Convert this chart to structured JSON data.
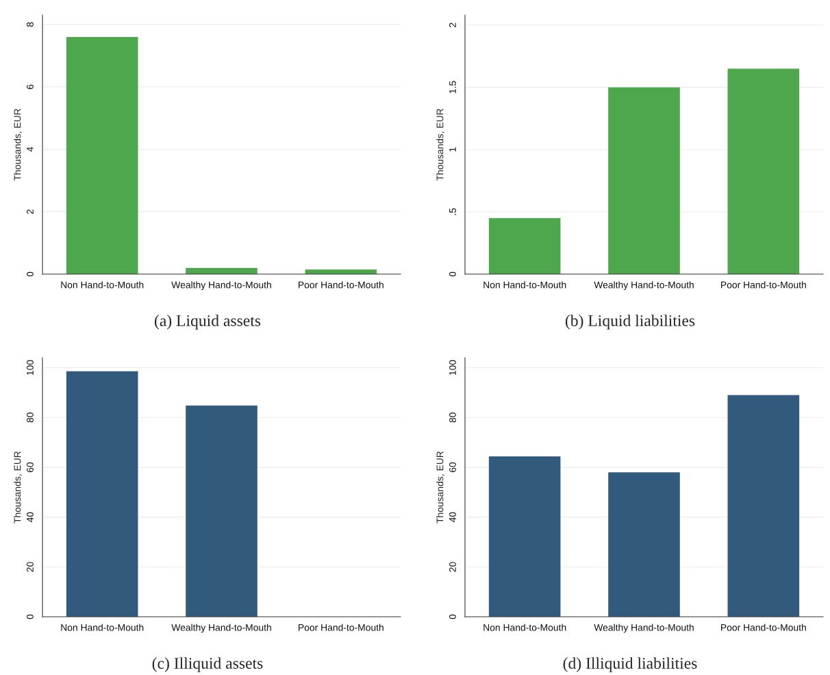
{
  "chart_data": [
    {
      "type": "bar",
      "title": "(a) Liquid assets",
      "ylabel": "Thousands, EUR",
      "categories": [
        "Non Hand-to-Mouth",
        "Wealthy Hand-to-Mouth",
        "Poor Hand-to-Mouth"
      ],
      "values": [
        7.6,
        0.2,
        0.15
      ],
      "color": "#4ea64d",
      "ylim": [
        0,
        8.3
      ],
      "yticks": [
        0,
        2,
        4,
        6,
        8
      ],
      "grid": "y"
    },
    {
      "type": "bar",
      "title": "(b) Liquid liabilities",
      "ylabel": "Thousands, EUR",
      "categories": [
        "Non Hand-to-Mouth",
        "Wealthy Hand-to-Mouth",
        "Poor Hand-to-Mouth"
      ],
      "values": [
        0.45,
        1.5,
        1.65
      ],
      "color": "#4ea64d",
      "ylim": [
        0,
        2.08
      ],
      "yticks": [
        0,
        {
          "value": 0.5,
          "label": ".5"
        },
        1,
        1.5,
        2
      ],
      "grid": "y"
    },
    {
      "type": "bar",
      "title": "(c) Illiquid assets",
      "ylabel": "Thousands, EUR",
      "categories": [
        "Non Hand-to-Mouth",
        "Wealthy Hand-to-Mouth",
        "Poor Hand-to-Mouth"
      ],
      "values": [
        98.6,
        84.8,
        0
      ],
      "color": "#325a7d",
      "ylim": [
        0,
        104
      ],
      "yticks": [
        0,
        20,
        40,
        60,
        80,
        100
      ],
      "grid": "y"
    },
    {
      "type": "bar",
      "title": "(d) Illiquid liabilities",
      "ylabel": "Thousands, EUR",
      "categories": [
        "Non Hand-to-Mouth",
        "Wealthy Hand-to-Mouth",
        "Poor Hand-to-Mouth"
      ],
      "values": [
        64.4,
        58,
        89
      ],
      "color": "#325a7d",
      "ylim": [
        0,
        104
      ],
      "yticks": [
        0,
        20,
        40,
        60,
        80,
        100
      ],
      "grid": "y"
    }
  ]
}
